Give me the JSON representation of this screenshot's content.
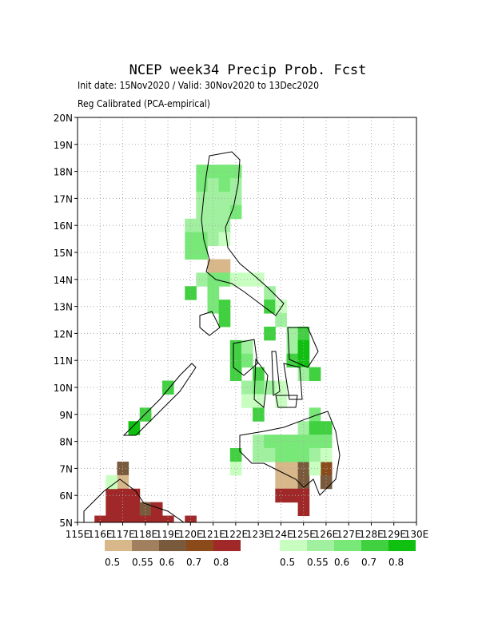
{
  "chart_data": {
    "type": "map",
    "title": "NCEP week34 Precip Prob. Fcst",
    "subtitle": "Init date: 15Nov2020 / Valid: 30Nov2020 to 13Dec2020",
    "note": "Reg Calibrated (PCA-empirical)",
    "xlim": [
      115,
      130
    ],
    "ylim": [
      5,
      20
    ],
    "xticks": [
      {
        "value": 115,
        "label": "115E"
      },
      {
        "value": 116,
        "label": "116E"
      },
      {
        "value": 117,
        "label": "117E"
      },
      {
        "value": 118,
        "label": "118E"
      },
      {
        "value": 119,
        "label": "119E"
      },
      {
        "value": 120,
        "label": "120E"
      },
      {
        "value": 121,
        "label": "121E"
      },
      {
        "value": 122,
        "label": "122E"
      },
      {
        "value": 123,
        "label": "123E"
      },
      {
        "value": 124,
        "label": "124E"
      },
      {
        "value": 125,
        "label": "125E"
      },
      {
        "value": 126,
        "label": "126E"
      },
      {
        "value": 127,
        "label": "127E"
      },
      {
        "value": 128,
        "label": "128E"
      },
      {
        "value": 129,
        "label": "129E"
      },
      {
        "value": 130,
        "label": "130E"
      }
    ],
    "yticks": [
      {
        "value": 5,
        "label": "5N"
      },
      {
        "value": 6,
        "label": "6N"
      },
      {
        "value": 7,
        "label": "7N"
      },
      {
        "value": 8,
        "label": "8N"
      },
      {
        "value": 9,
        "label": "9N"
      },
      {
        "value": 10,
        "label": "10N"
      },
      {
        "value": 11,
        "label": "11N"
      },
      {
        "value": 12,
        "label": "12N"
      },
      {
        "value": 13,
        "label": "13N"
      },
      {
        "value": 14,
        "label": "14N"
      },
      {
        "value": 15,
        "label": "15N"
      },
      {
        "value": 16,
        "label": "16N"
      },
      {
        "value": 17,
        "label": "17N"
      },
      {
        "value": 18,
        "label": "18N"
      },
      {
        "value": 19,
        "label": "19N"
      },
      {
        "value": 20,
        "label": "20N"
      }
    ],
    "grid": true,
    "dry_legend": {
      "levels": [
        0.5,
        0.55,
        0.6,
        0.7,
        0.8
      ],
      "colors": [
        "#d8b88a",
        "#a0805f",
        "#7a5a3c",
        "#8a4a1a",
        "#a02828"
      ]
    },
    "wet_legend": {
      "levels": [
        0.5,
        0.55,
        0.6,
        0.7,
        0.8
      ],
      "colors": [
        "#c8ffc0",
        "#a0f0a0",
        "#78e878",
        "#40d040",
        "#10c010"
      ]
    },
    "dry_cells": [
      [
        121,
        14.5,
        0.5
      ],
      [
        121.5,
        14.5,
        0.5
      ],
      [
        117,
        7,
        0.6
      ],
      [
        124,
        7,
        0.5
      ],
      [
        124.5,
        7,
        0.5
      ],
      [
        125,
        7,
        0.6
      ],
      [
        126,
        7,
        0.7
      ],
      [
        117,
        6.5,
        0.5
      ],
      [
        124,
        6.5,
        0.5
      ],
      [
        124.5,
        6.5,
        0.5
      ],
      [
        125,
        6.5,
        0.6
      ],
      [
        126,
        6.5,
        0.6
      ],
      [
        116.5,
        6,
        0.8
      ],
      [
        117,
        6,
        0.8
      ],
      [
        117.5,
        6,
        0.8
      ],
      [
        124,
        6,
        0.8
      ],
      [
        124.5,
        6,
        0.8
      ],
      [
        125,
        6,
        0.8
      ],
      [
        116.5,
        5.5,
        0.8
      ],
      [
        117,
        5.5,
        0.8
      ],
      [
        117.5,
        5.5,
        0.8
      ],
      [
        118,
        5.5,
        0.6
      ],
      [
        118.5,
        5.5,
        0.8
      ],
      [
        125,
        5.5,
        0.8
      ],
      [
        116,
        5,
        0.8
      ],
      [
        116.5,
        5,
        0.8
      ],
      [
        117,
        5,
        0.8
      ],
      [
        117.5,
        5,
        0.8
      ],
      [
        118,
        5,
        0.8
      ],
      [
        118.5,
        5,
        0.8
      ],
      [
        119,
        5,
        0.8
      ],
      [
        120,
        5,
        0.8
      ]
    ],
    "wet_cells": [
      [
        120.5,
        18,
        0.6
      ],
      [
        121,
        18,
        0.6
      ],
      [
        121.5,
        18,
        0.6
      ],
      [
        122,
        18,
        0.6
      ],
      [
        120.5,
        17.5,
        0.6
      ],
      [
        121,
        17.5,
        0.55
      ],
      [
        121.5,
        17.5,
        0.6
      ],
      [
        122,
        17.5,
        0.55
      ],
      [
        120.5,
        17,
        0.55
      ],
      [
        121,
        17,
        0.55
      ],
      [
        121.5,
        17,
        0.55
      ],
      [
        122,
        17,
        0.55
      ],
      [
        120.5,
        16.5,
        0.55
      ],
      [
        121,
        16.5,
        0.55
      ],
      [
        121.5,
        16.5,
        0.55
      ],
      [
        122,
        16.5,
        0.6
      ],
      [
        120,
        16,
        0.55
      ],
      [
        120.5,
        16,
        0.55
      ],
      [
        121,
        16,
        0.55
      ],
      [
        121.5,
        16,
        0.55
      ],
      [
        120,
        15.5,
        0.6
      ],
      [
        120.5,
        15.5,
        0.6
      ],
      [
        121,
        15.5,
        0.55
      ],
      [
        121.5,
        15.5,
        0.5
      ],
      [
        120,
        15,
        0.6
      ],
      [
        120.5,
        15,
        0.6
      ],
      [
        120.5,
        14,
        0.55
      ],
      [
        121,
        14,
        0.6
      ],
      [
        121.5,
        14,
        0.6
      ],
      [
        122,
        14,
        0.5
      ],
      [
        122.5,
        14,
        0.5
      ],
      [
        123,
        14,
        0.5
      ],
      [
        120,
        13.5,
        0.7
      ],
      [
        121,
        13.5,
        0.6
      ],
      [
        123.5,
        13.5,
        0.55
      ],
      [
        121,
        13,
        0.6
      ],
      [
        121.5,
        13,
        0.7
      ],
      [
        123.5,
        13,
        0.7
      ],
      [
        124,
        13,
        0.5
      ],
      [
        121.5,
        12.5,
        0.7
      ],
      [
        124,
        12.5,
        0.55
      ],
      [
        123.5,
        12,
        0.7
      ],
      [
        124.5,
        12,
        0.55
      ],
      [
        125,
        12,
        0.7
      ],
      [
        122,
        11.5,
        0.7
      ],
      [
        122.5,
        11.5,
        0.55
      ],
      [
        124.5,
        11.5,
        0.55
      ],
      [
        125,
        11.5,
        0.8
      ],
      [
        122,
        11,
        0.7
      ],
      [
        122.5,
        11,
        0.6
      ],
      [
        124.5,
        11,
        0.7
      ],
      [
        125,
        11,
        0.8
      ],
      [
        122,
        10.5,
        0.7
      ],
      [
        123,
        10.5,
        0.7
      ],
      [
        125,
        10.5,
        0.55
      ],
      [
        125.5,
        10.5,
        0.7
      ],
      [
        119,
        10,
        0.7
      ],
      [
        122.5,
        10,
        0.55
      ],
      [
        123,
        10,
        0.6
      ],
      [
        123.5,
        10,
        0.55
      ],
      [
        124,
        10,
        0.5
      ],
      [
        122.5,
        9.5,
        0.5
      ],
      [
        123,
        9.5,
        0.5
      ],
      [
        124,
        9.5,
        0.5
      ],
      [
        118,
        9,
        0.7
      ],
      [
        123,
        9,
        0.7
      ],
      [
        125.5,
        9,
        0.6
      ],
      [
        117.5,
        8.5,
        0.8
      ],
      [
        125,
        8.5,
        0.55
      ],
      [
        125.5,
        8.5,
        0.7
      ],
      [
        126,
        8.5,
        0.7
      ],
      [
        123,
        8,
        0.55
      ],
      [
        123.5,
        8,
        0.6
      ],
      [
        124,
        8,
        0.6
      ],
      [
        124.5,
        8,
        0.6
      ],
      [
        125,
        8,
        0.6
      ],
      [
        125.5,
        8,
        0.6
      ],
      [
        126,
        8,
        0.6
      ],
      [
        122,
        7.5,
        0.7
      ],
      [
        123,
        7.5,
        0.55
      ],
      [
        123.5,
        7.5,
        0.55
      ],
      [
        124,
        7.5,
        0.6
      ],
      [
        124.5,
        7.5,
        0.6
      ],
      [
        125,
        7.5,
        0.6
      ],
      [
        125.5,
        7.5,
        0.55
      ],
      [
        126,
        7.5,
        0.5
      ],
      [
        122,
        7,
        0.5
      ],
      [
        125.5,
        7,
        0.5
      ],
      [
        116.5,
        6.5,
        0.5
      ]
    ]
  }
}
